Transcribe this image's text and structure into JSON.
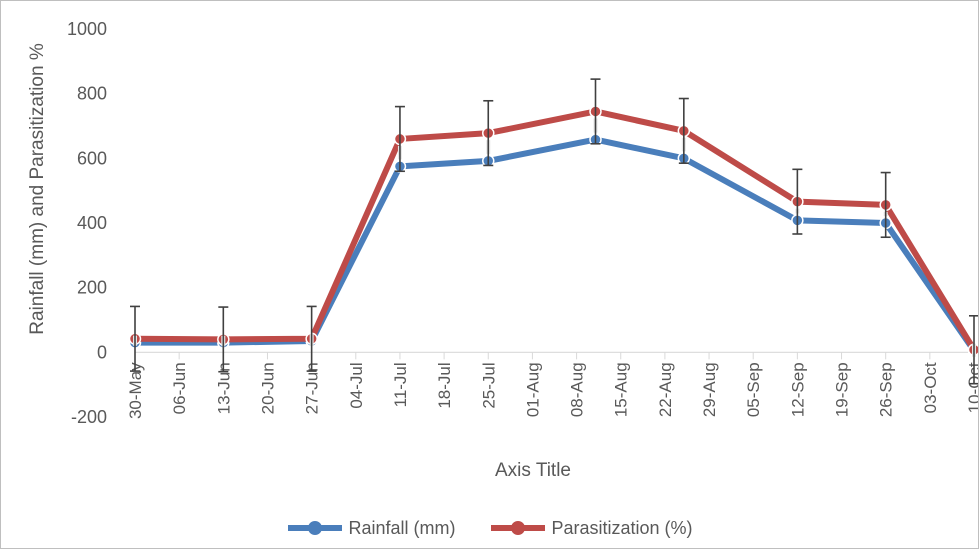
{
  "chart_data": {
    "type": "line",
    "title": "",
    "xlabel": "Axis Title",
    "ylabel": "Rainfall (mm) and Parasitization %",
    "ylim": [
      -200,
      1000
    ],
    "yticks": [
      -200,
      0,
      200,
      400,
      600,
      800,
      1000
    ],
    "xlim": [
      "2024-05-30",
      "2024-10-10"
    ],
    "xtick_labels": [
      "30-May",
      "06-Jun",
      "13-Jun",
      "20-Jun",
      "27-Jun",
      "04-Jul",
      "11-Jul",
      "18-Jul",
      "25-Jul",
      "01-Aug",
      "08-Aug",
      "15-Aug",
      "22-Aug",
      "29-Aug",
      "05-Sep",
      "12-Sep",
      "19-Sep",
      "26-Sep",
      "03-Oct",
      "10-Oct"
    ],
    "x": [
      "2024-05-30",
      "2024-06-13",
      "2024-06-27",
      "2024-07-11",
      "2024-07-25",
      "2024-08-11",
      "2024-08-25",
      "2024-09-12",
      "2024-09-26",
      "2024-10-10"
    ],
    "series": [
      {
        "name": "Rainfall (mm)",
        "color": "#4a7ebb",
        "values": [
          30,
          30,
          35,
          575,
          592,
          658,
          600,
          408,
          400,
          5
        ],
        "error": [
          0,
          0,
          0,
          0,
          0,
          0,
          0,
          0,
          0,
          0
        ]
      },
      {
        "name": "Parasitization (%)",
        "color": "#be4b48",
        "values": [
          42,
          40,
          42,
          660,
          678,
          745,
          685,
          466,
          456,
          8
        ],
        "error": [
          100,
          100,
          100,
          100,
          100,
          100,
          100,
          100,
          100,
          105
        ]
      }
    ],
    "grid": false,
    "legend_position": "bottom"
  }
}
